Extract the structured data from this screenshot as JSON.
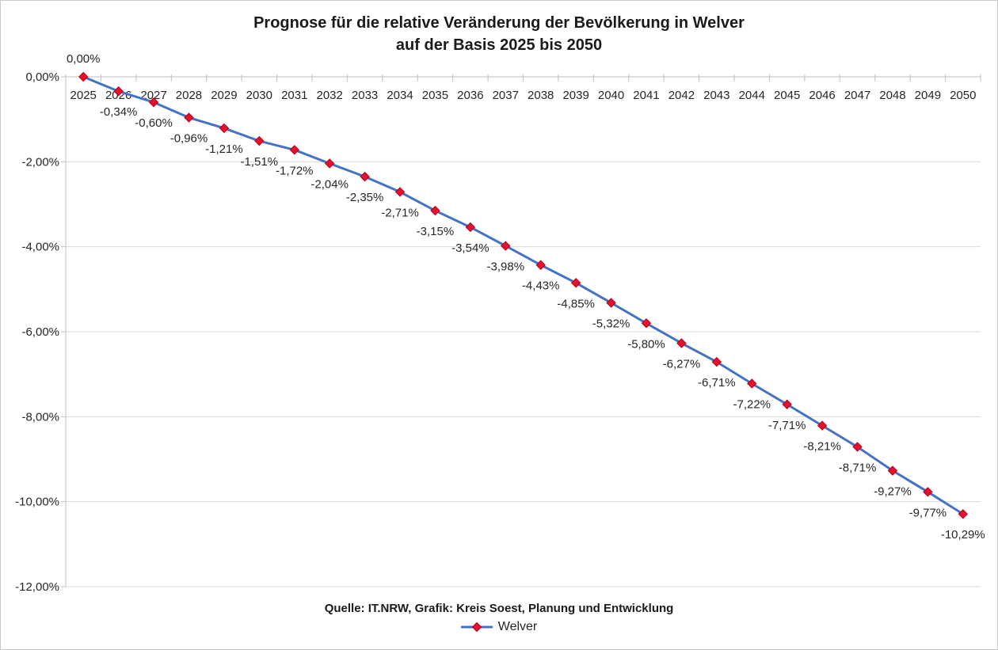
{
  "title": {
    "line1": "Prognose für die relative Veränderung der Bevölkerung in Welver",
    "line2": "auf der Basis 2025 bis 2050"
  },
  "source_line": "Quelle: IT.NRW, Grafik: Kreis Soest, Planung und Entwicklung",
  "legend": {
    "series_label": "Welver"
  },
  "colors": {
    "line": "#4472C4",
    "marker_fill": "#E8112D",
    "marker_stroke": "#B00016",
    "gridline": "#D9D9D9",
    "axis": "#BFBFBF",
    "text": "#262626"
  },
  "chart_data": {
    "type": "line",
    "title": "Prognose für die relative Veränderung der Bevölkerung in Welver auf der Basis 2025 bis 2050",
    "categories": [
      "2025",
      "2026",
      "2027",
      "2028",
      "2029",
      "2030",
      "2031",
      "2032",
      "2033",
      "2034",
      "2035",
      "2036",
      "2037",
      "2038",
      "2039",
      "2040",
      "2041",
      "2042",
      "2043",
      "2044",
      "2045",
      "2046",
      "2047",
      "2048",
      "2049",
      "2050"
    ],
    "series": [
      {
        "name": "Welver",
        "values": [
          0.0,
          -0.34,
          -0.6,
          -0.96,
          -1.21,
          -1.51,
          -1.72,
          -2.04,
          -2.35,
          -2.71,
          -3.15,
          -3.54,
          -3.98,
          -4.43,
          -4.85,
          -5.32,
          -5.8,
          -6.27,
          -6.71,
          -7.22,
          -7.71,
          -8.21,
          -8.71,
          -9.27,
          -9.77,
          -10.29
        ],
        "labels": [
          "0,00%",
          "-0,34%",
          "-0,60%",
          "-0,96%",
          "-1,21%",
          "-1,51%",
          "-1,72%",
          "-2,04%",
          "-2,35%",
          "-2,71%",
          "-3,15%",
          "-3,54%",
          "-3,98%",
          "-4,43%",
          "-4,85%",
          "-5,32%",
          "-5,80%",
          "-6,27%",
          "-6,71%",
          "-7,22%",
          "-7,71%",
          "-8,21%",
          "-8,71%",
          "-9,27%",
          "-9,77%",
          "-10,29%"
        ]
      }
    ],
    "ylim": [
      -12,
      0
    ],
    "ylabel": "",
    "xlabel": "",
    "ytick_labels": [
      "0,00%",
      "-2,00%",
      "-4,00%",
      "-6,00%",
      "-8,00%",
      "-10,00%",
      "-12,00%"
    ],
    "ytick_values": [
      0,
      -2,
      -4,
      -6,
      -8,
      -10,
      -12
    ],
    "grid": true,
    "legend_position": "bottom",
    "marker": "diamond"
  }
}
